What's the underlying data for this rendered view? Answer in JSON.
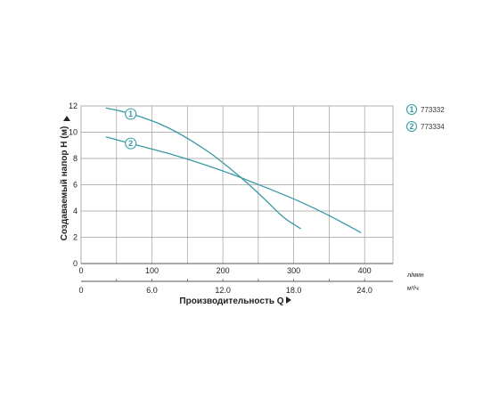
{
  "chart_data": {
    "type": "line",
    "ylabel": "Создаваемый напор H (м)",
    "xlabel": "Производительность Q",
    "ylim": [
      0,
      12
    ],
    "y_ticks": [
      "0",
      "2",
      "4",
      "6",
      "8",
      "10",
      "12"
    ],
    "xlim": [
      0,
      440
    ],
    "x_ticks_primary": [
      {
        "value": 0,
        "label": "0"
      },
      {
        "value": 100,
        "label": "100"
      },
      {
        "value": 200,
        "label": "200"
      },
      {
        "value": 300,
        "label": "300"
      },
      {
        "value": 400,
        "label": "400"
      }
    ],
    "x_ticks_secondary": [
      {
        "value": 0,
        "label": "0"
      },
      {
        "value": 100,
        "label": "6.0"
      },
      {
        "value": 200,
        "label": "12.0"
      },
      {
        "value": 300,
        "label": "18.0"
      },
      {
        "value": 400,
        "label": "24.0"
      }
    ],
    "x_unit_primary": "л/мин",
    "x_unit_secondary": "м³/ч",
    "vertical_grid": [
      50,
      100,
      150,
      200,
      250,
      300,
      350,
      400
    ],
    "grid": true,
    "legend_position": "top-right",
    "series": [
      {
        "marker": "1",
        "name": "773332",
        "color": "#3a9aa3",
        "marker_at": 70,
        "x": [
          35,
          60,
          85,
          110,
          135,
          160,
          185,
          210,
          235,
          260,
          285,
          310
        ],
        "y": [
          11.85,
          11.55,
          11.15,
          10.65,
          10.0,
          9.2,
          8.3,
          7.25,
          6.1,
          4.85,
          3.55,
          2.65
        ]
      },
      {
        "marker": "2",
        "name": "773334",
        "color": "#3a9aa3",
        "marker_at": 70,
        "x": [
          35,
          80,
          125,
          170,
          215,
          260,
          305,
          350,
          395
        ],
        "y": [
          9.65,
          9.0,
          8.35,
          7.6,
          6.75,
          5.8,
          4.8,
          3.65,
          2.35
        ]
      }
    ]
  }
}
